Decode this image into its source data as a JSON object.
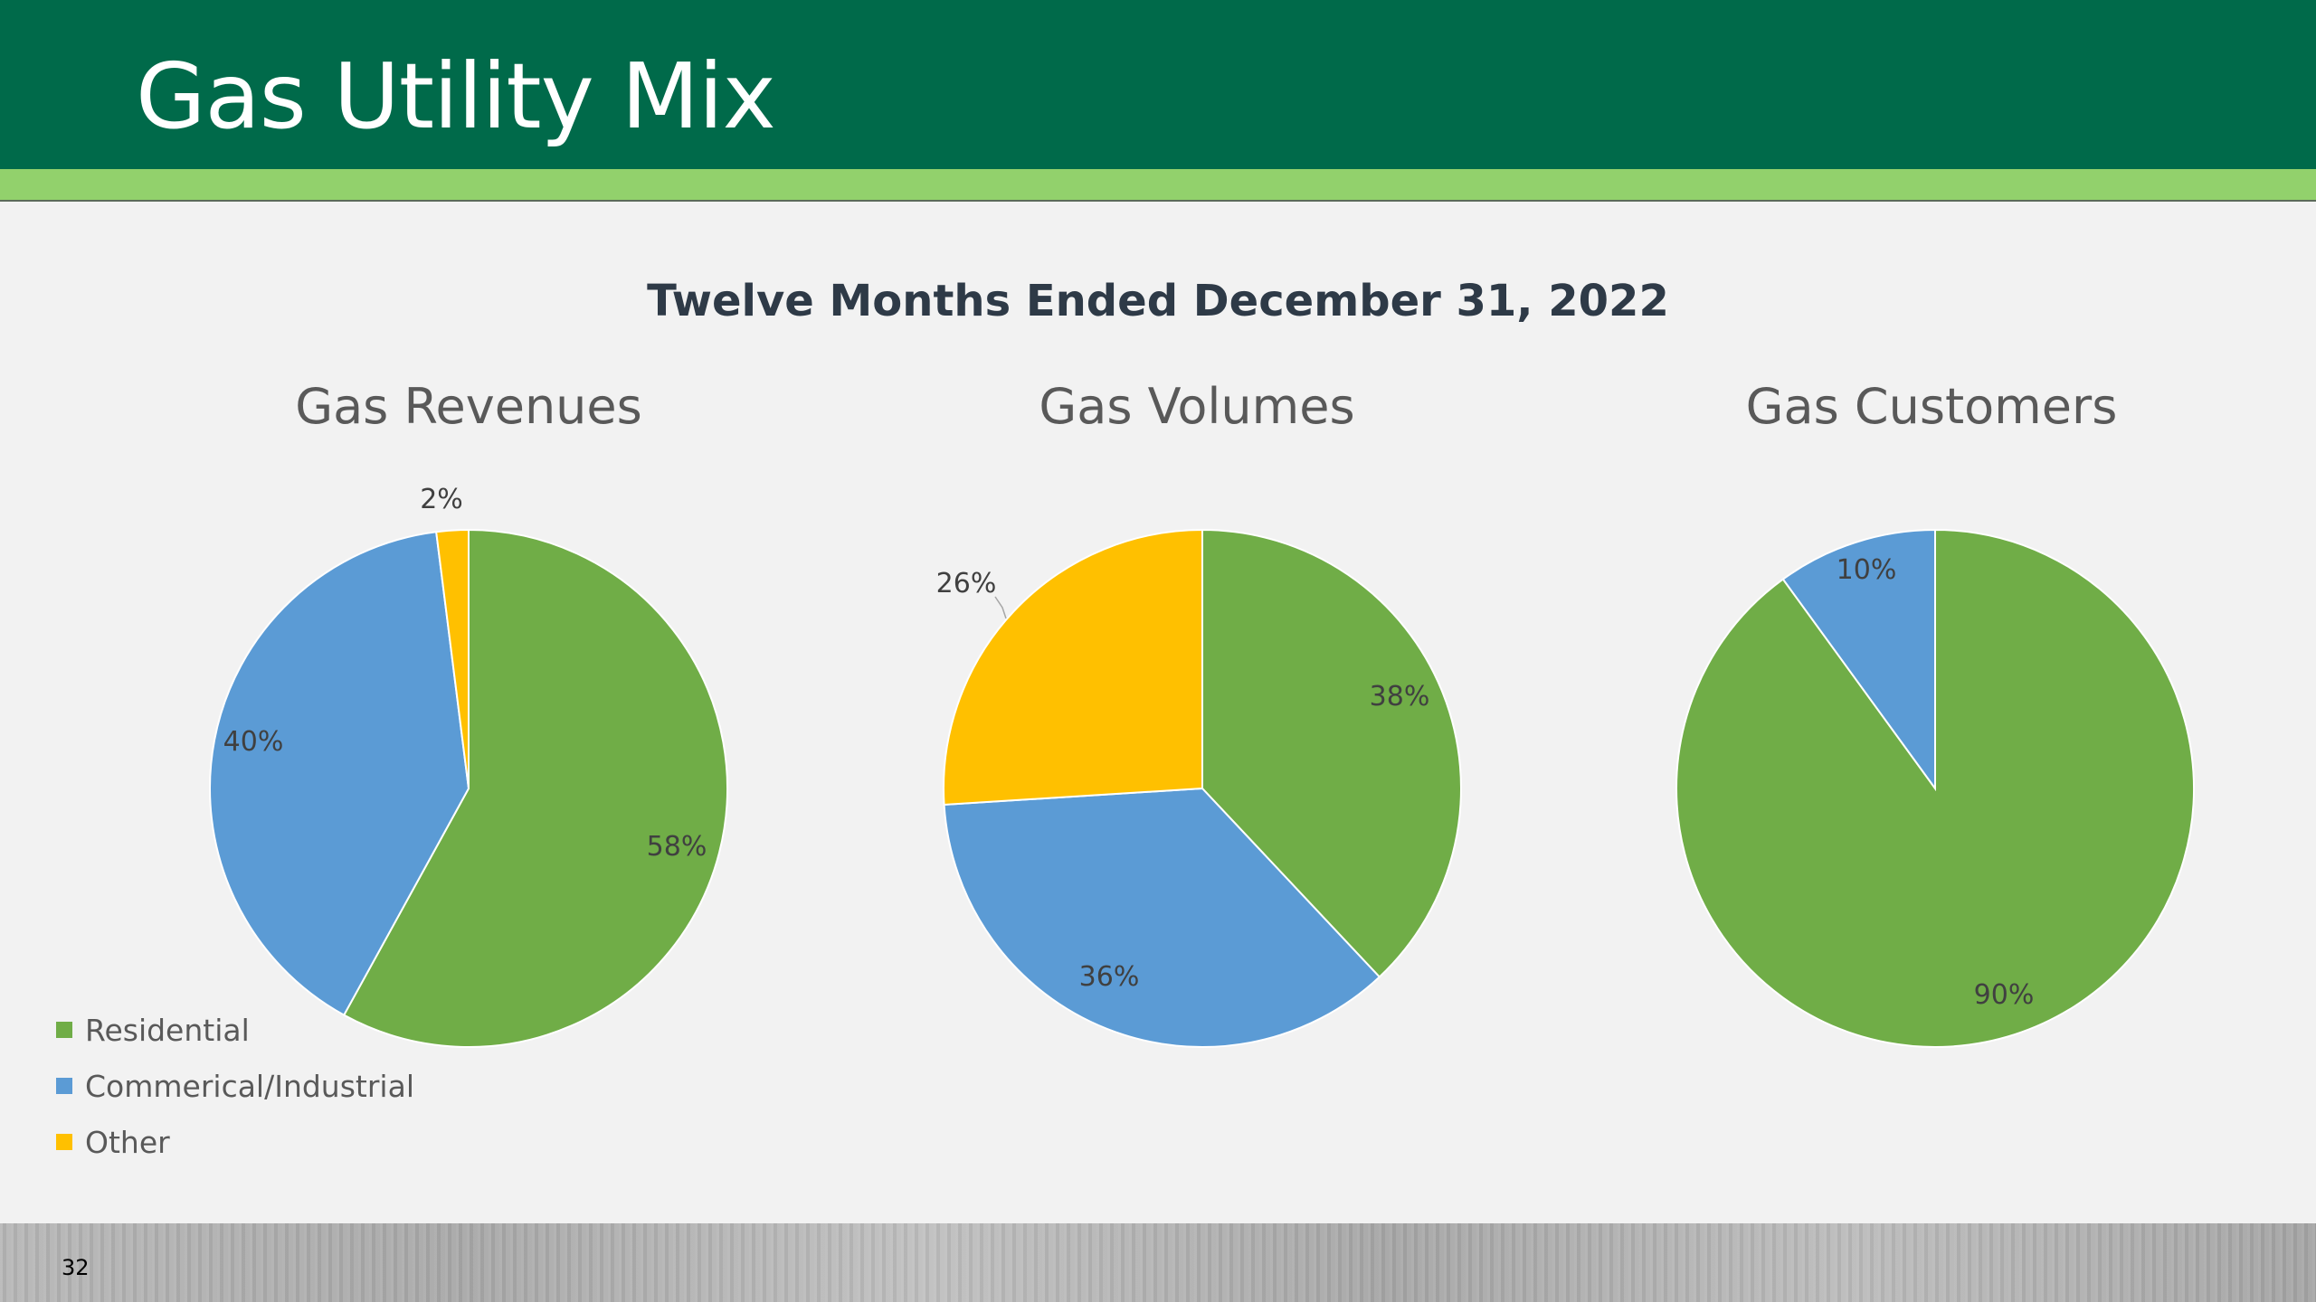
{
  "slide": {
    "title": "Gas Utility Mix",
    "subtitle": "Twelve Months Ended December 31, 2022",
    "page_number": "32"
  },
  "legend": [
    {
      "label": "Residential",
      "color": "#70ad47"
    },
    {
      "label": "Commerical/Industrial",
      "color": "#5b9bd5"
    },
    {
      "label": "Other",
      "color": "#ffc000"
    }
  ],
  "chart_data": [
    {
      "type": "pie",
      "title": "Gas Revenues",
      "categories": [
        "Residential",
        "Commerical/Industrial",
        "Other"
      ],
      "values": [
        58,
        40,
        2
      ],
      "labels": [
        "58%",
        "40%",
        "2%"
      ],
      "colors": [
        "#70ad47",
        "#5b9bd5",
        "#ffc000"
      ],
      "legend": "bottom-left"
    },
    {
      "type": "pie",
      "title": "Gas Volumes",
      "categories": [
        "Residential",
        "Commerical/Industrial",
        "Other"
      ],
      "values": [
        38,
        36,
        26
      ],
      "labels": [
        "38%",
        "36%",
        "26%"
      ],
      "colors": [
        "#70ad47",
        "#5b9bd5",
        "#ffc000"
      ]
    },
    {
      "type": "pie",
      "title": "Gas Customers",
      "categories": [
        "Residential",
        "Commerical/Industrial"
      ],
      "values": [
        90,
        10
      ],
      "labels": [
        "90%",
        "10%"
      ],
      "colors": [
        "#70ad47",
        "#5b9bd5"
      ]
    }
  ]
}
